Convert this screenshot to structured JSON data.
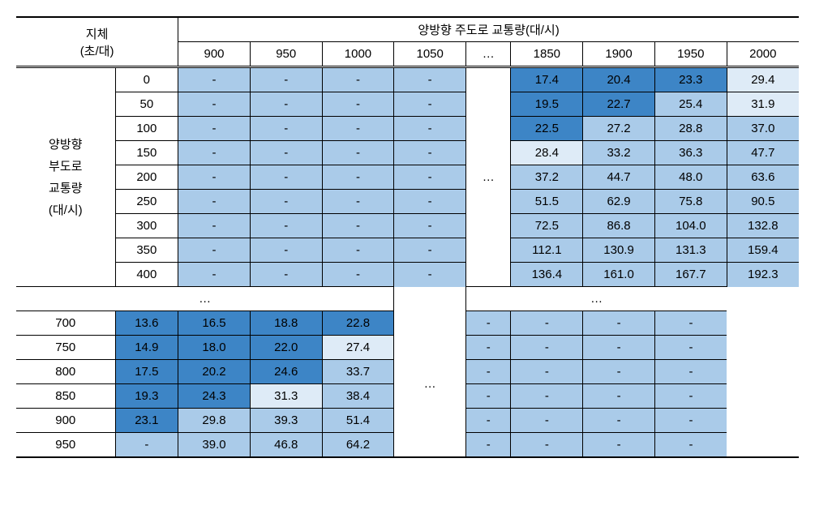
{
  "headers": {
    "delay": "지체",
    "delay_unit": "(초/대)",
    "main_volume": "양방향 주도로 교통량(대/시)",
    "side_volume_l1": "양방향",
    "side_volume_l2": "부도로",
    "side_volume_l3": "교통량",
    "side_volume_l4": "(대/시)",
    "cols_left": [
      "900",
      "950",
      "1000",
      "1050"
    ],
    "dots": "…",
    "cols_right": [
      "1850",
      "1900",
      "1950",
      "2000"
    ]
  },
  "row_labels_top": [
    "0",
    "50",
    "100",
    "150",
    "200",
    "250",
    "300",
    "350",
    "400"
  ],
  "row_labels_bottom": [
    "700",
    "750",
    "800",
    "850",
    "900",
    "950"
  ],
  "mid_row_dots": "…",
  "colors": {
    "c0": "#ffffff",
    "c1": "#deebf7",
    "c2": "#aacbe9",
    "c3": "#87b6e0",
    "c4": "#5c9bd5",
    "c5": "#3d85c6"
  },
  "top_block": {
    "left_vals": [
      [
        "-",
        "-",
        "-",
        "-"
      ],
      [
        "-",
        "-",
        "-",
        "-"
      ],
      [
        "-",
        "-",
        "-",
        "-"
      ],
      [
        "-",
        "-",
        "-",
        "-"
      ],
      [
        "-",
        "-",
        "-",
        "-"
      ],
      [
        "-",
        "-",
        "-",
        "-"
      ],
      [
        "-",
        "-",
        "-",
        "-"
      ],
      [
        "-",
        "-",
        "-",
        "-"
      ],
      [
        "-",
        "-",
        "-",
        "-"
      ]
    ],
    "left_shade": [
      [
        "c2",
        "c2",
        "c2",
        "c2"
      ],
      [
        "c2",
        "c2",
        "c2",
        "c2"
      ],
      [
        "c2",
        "c2",
        "c2",
        "c2"
      ],
      [
        "c2",
        "c2",
        "c2",
        "c2"
      ],
      [
        "c2",
        "c2",
        "c2",
        "c2"
      ],
      [
        "c2",
        "c2",
        "c2",
        "c2"
      ],
      [
        "c2",
        "c2",
        "c2",
        "c2"
      ],
      [
        "c2",
        "c2",
        "c2",
        "c2"
      ],
      [
        "c2",
        "c2",
        "c2",
        "c2"
      ]
    ],
    "right_vals": [
      [
        "17.4",
        "20.4",
        "23.3",
        "29.4"
      ],
      [
        "19.5",
        "22.7",
        "25.4",
        "31.9"
      ],
      [
        "22.5",
        "27.2",
        "28.8",
        "37.0"
      ],
      [
        "28.4",
        "33.2",
        "36.3",
        "47.7"
      ],
      [
        "37.2",
        "44.7",
        "48.0",
        "63.6"
      ],
      [
        "51.5",
        "62.9",
        "75.8",
        "90.5"
      ],
      [
        "72.5",
        "86.8",
        "104.0",
        "132.8"
      ],
      [
        "112.1",
        "130.9",
        "131.3",
        "159.4"
      ],
      [
        "136.4",
        "161.0",
        "167.7",
        "192.3"
      ]
    ],
    "right_shade": [
      [
        "c5",
        "c5",
        "c5",
        "c1"
      ],
      [
        "c5",
        "c5",
        "c2",
        "c1"
      ],
      [
        "c5",
        "c2",
        "c2",
        "c2"
      ],
      [
        "c1",
        "c2",
        "c2",
        "c2"
      ],
      [
        "c2",
        "c2",
        "c2",
        "c2"
      ],
      [
        "c2",
        "c2",
        "c2",
        "c2"
      ],
      [
        "c2",
        "c2",
        "c2",
        "c2"
      ],
      [
        "c2",
        "c2",
        "c2",
        "c2"
      ],
      [
        "c2",
        "c2",
        "c2",
        "c2"
      ]
    ]
  },
  "bottom_block": {
    "left_vals": [
      [
        "13.6",
        "16.5",
        "18.8",
        "22.8"
      ],
      [
        "14.9",
        "18.0",
        "22.0",
        "27.4"
      ],
      [
        "17.5",
        "20.2",
        "24.6",
        "33.7"
      ],
      [
        "19.3",
        "24.3",
        "31.3",
        "38.4"
      ],
      [
        "23.1",
        "29.8",
        "39.3",
        "51.4"
      ],
      [
        "-",
        "39.0",
        "46.8",
        "64.2"
      ]
    ],
    "left_shade": [
      [
        "c5",
        "c5",
        "c5",
        "c5"
      ],
      [
        "c5",
        "c5",
        "c5",
        "c1"
      ],
      [
        "c5",
        "c5",
        "c5",
        "c2"
      ],
      [
        "c5",
        "c5",
        "c1",
        "c2"
      ],
      [
        "c5",
        "c2",
        "c2",
        "c2"
      ],
      [
        "c2",
        "c2",
        "c2",
        "c2"
      ]
    ],
    "right_vals": [
      [
        "-",
        "-",
        "-",
        "-"
      ],
      [
        "-",
        "-",
        "-",
        "-"
      ],
      [
        "-",
        "-",
        "-",
        "-"
      ],
      [
        "-",
        "-",
        "-",
        "-"
      ],
      [
        "-",
        "-",
        "-",
        "-"
      ],
      [
        "-",
        "-",
        "-",
        "-"
      ]
    ],
    "right_shade": [
      [
        "c2",
        "c2",
        "c2",
        "c2"
      ],
      [
        "c2",
        "c2",
        "c2",
        "c2"
      ],
      [
        "c2",
        "c2",
        "c2",
        "c2"
      ],
      [
        "c2",
        "c2",
        "c2",
        "c2"
      ],
      [
        "c2",
        "c2",
        "c2",
        "c2"
      ],
      [
        "c2",
        "c2",
        "c2",
        "c2"
      ]
    ]
  }
}
